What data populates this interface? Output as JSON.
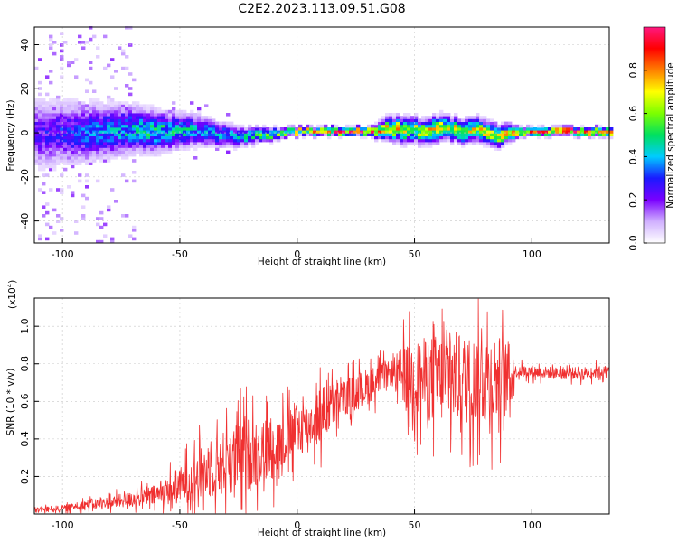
{
  "title": "C2E2.2023.113.09.51.G08",
  "chart_data": [
    {
      "type": "heatmap",
      "xlabel": "Height of straight line (km)",
      "ylabel": "Frequency (Hz)",
      "xlim": [
        -112,
        133
      ],
      "ylim": [
        -50,
        48
      ],
      "xticks": [
        -100,
        -50,
        0,
        50,
        100
      ],
      "yticks": [
        -40,
        -20,
        0,
        20,
        40
      ],
      "colorbar": {
        "label": "Normalized spectral amplitude",
        "range": [
          0,
          1
        ],
        "ticks": [
          0.0,
          0.2,
          0.4,
          0.6,
          0.8
        ],
        "tick_labels": [
          "0.0",
          "0.2",
          "0.4",
          "0.6",
          "0.8"
        ],
        "colors": [
          "#ffffff",
          "#d0b0ff",
          "#7a00ff",
          "#1a1aff",
          "#00ccff",
          "#00e060",
          "#7bff00",
          "#ffff00",
          "#ff8000",
          "#ff0000",
          "#ff1880"
        ]
      },
      "grid": true,
      "ridge": {
        "x": [
          -110,
          -100,
          -90,
          -80,
          -70,
          -60,
          -50,
          -40,
          -30,
          -20,
          -10,
          0,
          10,
          20,
          30,
          38,
          45,
          52,
          58,
          63,
          70,
          78,
          85,
          90,
          95,
          133
        ],
        "freq": [
          -1,
          0,
          -1,
          0,
          1,
          0,
          1,
          0,
          -2,
          -2,
          -1,
          0,
          0,
          0,
          0,
          1,
          1,
          0,
          1,
          2,
          0,
          1,
          -2,
          -1,
          0,
          0
        ],
        "peak_amplitude": [
          0.25,
          0.3,
          0.35,
          0.4,
          0.45,
          0.5,
          0.45,
          0.4,
          0.4,
          0.5,
          0.6,
          0.75,
          0.85,
          0.9,
          0.9,
          0.75,
          0.7,
          0.7,
          0.75,
          0.7,
          0.7,
          0.7,
          0.65,
          0.75,
          0.9,
          0.95
        ],
        "spread_hz": [
          12,
          11,
          10,
          9,
          8,
          7,
          6,
          5,
          4,
          3,
          2,
          1.5,
          1.5,
          1.5,
          1.5,
          4,
          4.5,
          4,
          4.5,
          4,
          4,
          4,
          4,
          3,
          1.5,
          1.5
        ]
      }
    },
    {
      "type": "line",
      "color": "#f03030",
      "xlabel": "Height of straight line (km)",
      "ylabel": "SNR (10 * v/v)",
      "multiplier_label": "(x10",
      "multiplier_exponent": "4",
      "multiplier_close": ")",
      "xlim": [
        -112,
        133
      ],
      "ylim": [
        0,
        1.15
      ],
      "xticks": [
        -100,
        -50,
        0,
        50,
        100
      ],
      "yticks": [
        0.2,
        0.4,
        0.6,
        0.8,
        1.0
      ],
      "ytick_labels": [
        "0.2",
        "0.4",
        "0.6",
        "0.8",
        "1.0"
      ],
      "grid": true,
      "envelope": {
        "x": [
          -112,
          -100,
          -90,
          -80,
          -70,
          -60,
          -50,
          -40,
          -30,
          -20,
          -10,
          -5,
          0,
          5,
          10,
          15,
          20,
          25,
          30,
          35,
          40,
          45,
          50,
          55,
          60,
          65,
          70,
          75,
          80,
          85,
          90,
          93,
          100,
          110,
          120,
          133
        ],
        "mean": [
          0.02,
          0.03,
          0.05,
          0.06,
          0.08,
          0.1,
          0.15,
          0.22,
          0.28,
          0.32,
          0.35,
          0.4,
          0.45,
          0.48,
          0.52,
          0.58,
          0.62,
          0.65,
          0.68,
          0.72,
          0.75,
          0.74,
          0.72,
          0.72,
          0.72,
          0.73,
          0.72,
          0.71,
          0.73,
          0.72,
          0.72,
          0.76,
          0.76,
          0.75,
          0.75,
          0.76
        ],
        "amplitude": [
          0.02,
          0.02,
          0.03,
          0.04,
          0.05,
          0.07,
          0.12,
          0.18,
          0.22,
          0.25,
          0.2,
          0.18,
          0.2,
          0.15,
          0.2,
          0.15,
          0.12,
          0.12,
          0.12,
          0.1,
          0.08,
          0.2,
          0.25,
          0.28,
          0.3,
          0.32,
          0.3,
          0.3,
          0.32,
          0.3,
          0.25,
          0.04,
          0.04,
          0.04,
          0.04,
          0.04
        ]
      }
    }
  ]
}
